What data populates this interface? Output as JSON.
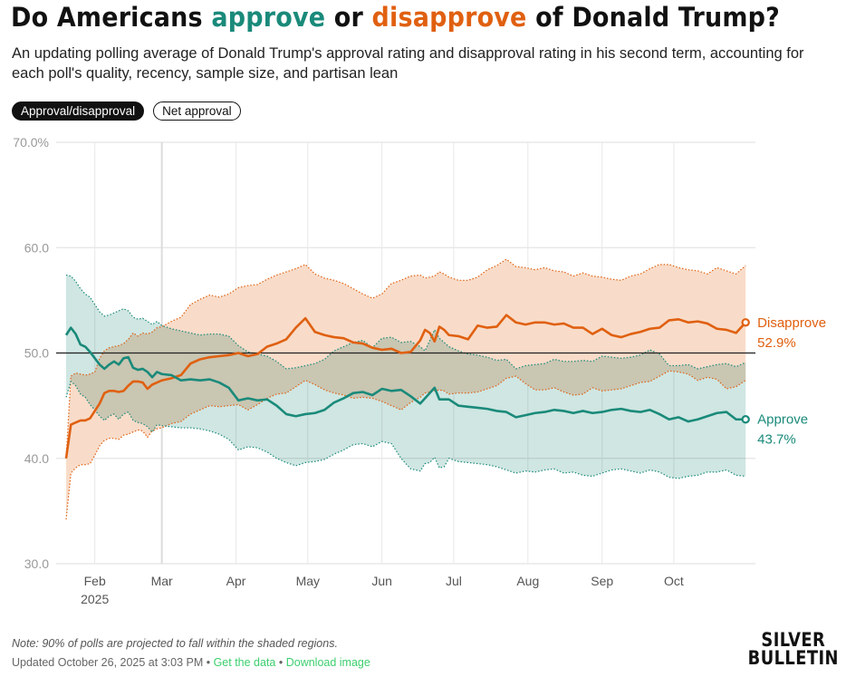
{
  "header": {
    "title_parts": [
      "Do Americans ",
      "approve",
      " or ",
      "disapprove",
      " of Donald Trump?"
    ],
    "subtitle": "An updating polling average of Donald Trump's approval rating and disapproval rating in his second term, accounting for each poll's quality, recency, sample size, and partisan lean"
  },
  "toggles": [
    {
      "label": "Approval/disapproval",
      "active": true
    },
    {
      "label": "Net approval",
      "active": false
    }
  ],
  "colors": {
    "approve": "#1a8a7a",
    "disapprove": "#e06010",
    "approve_band": "#cfe6e2",
    "disapprove_band": "#f8dcc9",
    "overlap_band": "#d3cab4"
  },
  "chart_data": {
    "type": "line",
    "title": "Do Americans approve or disapprove of Donald Trump?",
    "xlabel": "",
    "ylabel": "",
    "ylim": [
      30,
      70
    ],
    "yticks": [
      "70.0%",
      "60.0",
      "50.0",
      "40.0",
      "30.0"
    ],
    "ytick_values": [
      70,
      60,
      50,
      40,
      30
    ],
    "reference_line": 50,
    "grid": true,
    "x_start_date": "2025-01-20",
    "x_end_date": "2025-10-26",
    "xticks": [
      {
        "label": "Feb",
        "sublabel": "2025",
        "day": 12
      },
      {
        "label": "Mar",
        "sublabel": "",
        "day": 40
      },
      {
        "label": "Apr",
        "sublabel": "",
        "day": 71
      },
      {
        "label": "May",
        "sublabel": "",
        "day": 101
      },
      {
        "label": "Jun",
        "sublabel": "",
        "day": 132
      },
      {
        "label": "Jul",
        "sublabel": "",
        "day": 162
      },
      {
        "label": "Aug",
        "sublabel": "",
        "day": 193
      },
      {
        "label": "Sep",
        "sublabel": "",
        "day": 224
      },
      {
        "label": "Oct",
        "sublabel": "",
        "day": 254
      }
    ],
    "x_days": [
      0,
      2,
      4,
      6,
      8,
      10,
      12,
      14,
      16,
      18,
      20,
      22,
      24,
      26,
      28,
      30,
      32,
      34,
      36,
      38,
      40,
      44,
      48,
      52,
      56,
      60,
      64,
      68,
      72,
      76,
      80,
      84,
      88,
      92,
      96,
      100,
      104,
      108,
      112,
      116,
      120,
      124,
      128,
      132,
      136,
      140,
      144,
      148,
      150,
      152,
      154,
      156,
      158,
      160,
      164,
      168,
      172,
      176,
      180,
      184,
      188,
      192,
      196,
      200,
      204,
      208,
      212,
      216,
      220,
      224,
      228,
      232,
      236,
      240,
      244,
      248,
      252,
      256,
      260,
      264,
      268,
      272,
      276,
      280,
      284
    ],
    "series": [
      {
        "name": "Disapprove",
        "final_label": "52.9%",
        "values": [
          40.0,
          43.2,
          43.4,
          43.6,
          43.6,
          43.8,
          44.5,
          45.2,
          46.2,
          46.4,
          46.4,
          46.3,
          46.4,
          46.9,
          47.3,
          47.3,
          47.2,
          46.6,
          47.0,
          47.2,
          47.4,
          47.6,
          47.9,
          49.0,
          49.4,
          49.6,
          49.7,
          49.8,
          50.0,
          49.7,
          49.9,
          50.6,
          50.9,
          51.3,
          52.4,
          53.3,
          52.0,
          51.7,
          51.5,
          51.4,
          51.0,
          50.9,
          50.5,
          50.3,
          50.4,
          50.0,
          50.1,
          51.2,
          52.2,
          51.9,
          51.1,
          52.5,
          52.2,
          51.7,
          51.6,
          51.3,
          52.6,
          52.4,
          52.5,
          53.6,
          52.9,
          52.7,
          52.9,
          52.9,
          52.7,
          52.8,
          52.4,
          52.4,
          51.8,
          52.3,
          51.7,
          51.5,
          51.8,
          52.0,
          52.3,
          52.4,
          53.1,
          53.2,
          52.9,
          53.0,
          52.8,
          52.3,
          52.2,
          51.9,
          52.9
        ]
      },
      {
        "name": "Approve",
        "final_label": "43.7%",
        "values": [
          51.7,
          52.4,
          51.8,
          50.8,
          50.6,
          50.1,
          49.5,
          48.9,
          48.5,
          48.9,
          49.2,
          48.9,
          49.5,
          49.6,
          48.6,
          48.4,
          48.5,
          48.2,
          47.7,
          48.2,
          48.0,
          47.9,
          47.4,
          47.5,
          47.4,
          47.5,
          47.2,
          46.7,
          45.5,
          45.7,
          45.5,
          45.6,
          45.0,
          44.2,
          44.0,
          44.2,
          44.3,
          44.6,
          45.3,
          45.7,
          46.2,
          46.3,
          46.0,
          46.6,
          46.4,
          46.5,
          45.9,
          45.2,
          45.7,
          46.2,
          46.7,
          45.6,
          45.6,
          45.6,
          45.0,
          44.9,
          44.8,
          44.7,
          44.5,
          44.4,
          43.9,
          44.1,
          44.3,
          44.4,
          44.6,
          44.5,
          44.3,
          44.5,
          44.3,
          44.4,
          44.6,
          44.7,
          44.5,
          44.4,
          44.6,
          44.2,
          43.7,
          43.9,
          43.5,
          43.7,
          44.0,
          44.3,
          44.4,
          43.7,
          43.7
        ]
      }
    ],
    "bands": [
      {
        "name": "Disapprove 90% range",
        "upper": [
          40.0,
          47.8,
          48.1,
          48.0,
          47.9,
          48.0,
          48.2,
          49.5,
          50.2,
          50.5,
          50.6,
          50.7,
          50.9,
          51.3,
          51.9,
          51.6,
          51.9,
          51.8,
          52.0,
          52.4,
          52.5,
          53.0,
          53.4,
          54.6,
          55.1,
          55.5,
          55.3,
          55.6,
          56.2,
          56.4,
          56.5,
          57.0,
          57.4,
          57.7,
          58.0,
          58.4,
          57.5,
          57.1,
          56.9,
          56.6,
          56.1,
          55.6,
          55.2,
          55.6,
          56.6,
          56.9,
          57.3,
          57.4,
          57.1,
          57.2,
          57.3,
          57.7,
          57.5,
          57.2,
          56.9,
          56.9,
          57.2,
          57.9,
          58.3,
          58.9,
          58.2,
          58.1,
          57.9,
          58.1,
          57.8,
          57.7,
          57.3,
          57.6,
          57.3,
          57.2,
          57.0,
          56.9,
          57.3,
          57.5,
          58.0,
          58.4,
          58.4,
          58.1,
          57.9,
          57.8,
          57.5,
          58.1,
          57.8,
          57.5,
          58.3
        ],
        "lower": [
          34.2,
          38.6,
          39.1,
          39.4,
          39.4,
          39.5,
          40.3,
          41.2,
          41.7,
          41.9,
          41.9,
          41.8,
          42.2,
          42.3,
          42.5,
          42.7,
          42.6,
          42.0,
          42.6,
          42.8,
          42.9,
          43.3,
          43.5,
          44.2,
          44.6,
          45.0,
          44.9,
          45.0,
          45.1,
          44.6,
          45.1,
          45.7,
          46.1,
          46.2,
          46.8,
          47.4,
          47.0,
          46.5,
          46.2,
          46.0,
          45.7,
          45.8,
          45.7,
          45.4,
          45.0,
          44.6,
          45.3,
          45.8,
          46.2,
          46.3,
          46.4,
          46.5,
          46.4,
          46.1,
          46.2,
          46.2,
          46.3,
          46.6,
          46.9,
          47.6,
          47.8,
          47.1,
          46.5,
          46.5,
          46.7,
          46.3,
          46.0,
          46.1,
          46.7,
          46.4,
          46.5,
          46.6,
          46.9,
          47.2,
          47.3,
          47.8,
          48.3,
          48.2,
          48.0,
          47.4,
          47.7,
          47.5,
          46.6,
          46.8,
          47.4
        ]
      },
      {
        "name": "Approve 90% range",
        "upper": [
          57.4,
          57.3,
          56.8,
          56.1,
          55.6,
          55.3,
          54.6,
          53.9,
          53.5,
          53.6,
          53.8,
          54.0,
          54.2,
          54.0,
          53.4,
          53.2,
          53.3,
          53.0,
          52.7,
          53.0,
          52.6,
          52.3,
          52.1,
          51.9,
          51.7,
          51.8,
          51.8,
          51.6,
          50.7,
          50.1,
          49.9,
          49.7,
          49.2,
          48.5,
          48.6,
          48.8,
          49.0,
          49.4,
          50.2,
          50.6,
          51.0,
          51.2,
          50.5,
          51.4,
          51.5,
          51.0,
          51.1,
          50.6,
          50.2,
          51.2,
          52.2,
          51.4,
          51.0,
          50.6,
          50.2,
          49.9,
          49.8,
          49.6,
          49.3,
          49.4,
          48.5,
          48.8,
          48.9,
          49.0,
          49.4,
          49.2,
          49.2,
          49.3,
          49.2,
          49.7,
          49.6,
          49.5,
          49.6,
          49.8,
          50.3,
          49.9,
          48.8,
          48.8,
          48.9,
          48.5,
          48.7,
          48.9,
          49.0,
          48.7,
          49.1
        ],
        "lower": [
          45.8,
          47.3,
          46.9,
          46.1,
          45.8,
          45.1,
          44.6,
          44.0,
          43.6,
          44.0,
          44.2,
          43.7,
          44.2,
          44.4,
          43.6,
          43.4,
          43.3,
          43.0,
          42.5,
          43.2,
          43.1,
          43.0,
          42.9,
          42.9,
          42.8,
          42.6,
          42.3,
          41.8,
          40.8,
          41.1,
          41.0,
          40.6,
          40.0,
          39.6,
          39.3,
          39.6,
          39.7,
          39.9,
          40.4,
          40.8,
          41.3,
          41.4,
          41.1,
          41.6,
          41.4,
          40.0,
          39.0,
          38.8,
          39.5,
          39.6,
          40.1,
          39.1,
          39.2,
          40.0,
          39.7,
          39.6,
          39.5,
          39.4,
          39.2,
          38.9,
          38.6,
          38.8,
          38.7,
          38.9,
          39.0,
          38.6,
          38.7,
          38.4,
          38.3,
          38.6,
          38.9,
          39.0,
          38.8,
          38.6,
          38.9,
          38.7,
          38.2,
          38.1,
          38.3,
          38.4,
          38.7,
          38.7,
          38.9,
          38.4,
          38.3
        ]
      }
    ],
    "end_labels": [
      {
        "name": "Disapprove",
        "value": "52.9%"
      },
      {
        "name": "Approve",
        "value": "43.7%"
      }
    ],
    "legend": "end-of-line labels (right)"
  },
  "footer": {
    "note": "Note: 90% of polls are projected to fall within the shaded regions.",
    "updated": "Updated October 26, 2025 at 3:03 PM",
    "separator": " • ",
    "get_data": "Get the data",
    "download": "Download image",
    "logo_line1": "SILVER",
    "logo_line2": "BULLETIN"
  }
}
